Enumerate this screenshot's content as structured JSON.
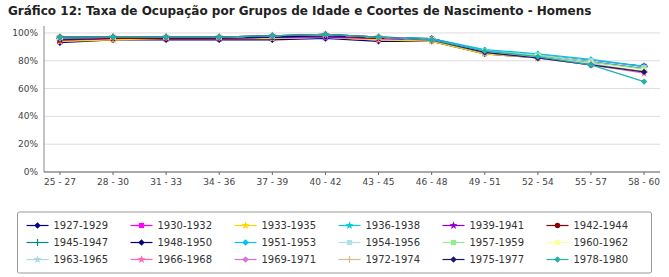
{
  "chart_data": {
    "type": "line",
    "title": "Gráfico 12: Taxa de Ocupação por Grupos de Idade e Coortes de Nascimento - Homens",
    "categories": [
      "25 - 27",
      "28 - 30",
      "31 - 33",
      "34 - 36",
      "37 - 39",
      "40 - 42",
      "43 - 45",
      "46 - 48",
      "49 - 51",
      "52 - 54",
      "55 - 57",
      "58 - 60"
    ],
    "ylim": [
      0,
      1.05
    ],
    "yticks": [
      {
        "value": 0,
        "label": "0%"
      },
      {
        "value": 0.2,
        "label": "20%"
      },
      {
        "value": 0.4,
        "label": "40%"
      },
      {
        "value": 0.6,
        "label": "60%"
      },
      {
        "value": 0.8,
        "label": "80%"
      },
      {
        "value": 1,
        "label": "100%"
      }
    ],
    "grid": true,
    "legend": "bottom",
    "series": [
      {
        "name": "1927-1929",
        "color": "#00008B",
        "marker": "diamond",
        "values": [
          0.93,
          0.95,
          0.95,
          0.95,
          0.95,
          0.96,
          0.94,
          0.94,
          0.85,
          0.82,
          0.79,
          0.75
        ]
      },
      {
        "name": "1930-1932",
        "color": "#FF00FF",
        "marker": "square",
        "values": [
          0.94,
          0.96,
          0.96,
          0.96,
          0.96,
          0.97,
          0.95,
          0.95,
          0.86,
          0.83,
          0.8,
          0.76
        ]
      },
      {
        "name": "1933-1935",
        "color": "#FFD700",
        "marker": "star",
        "values": [
          0.94,
          0.95,
          0.96,
          0.96,
          0.96,
          0.97,
          0.95,
          0.94,
          0.85,
          0.82,
          0.79,
          0.75
        ]
      },
      {
        "name": "1936-1938",
        "color": "#00CED1",
        "marker": "star",
        "values": [
          0.96,
          0.97,
          0.97,
          0.97,
          0.97,
          0.98,
          0.97,
          0.95,
          0.87,
          0.84,
          0.8,
          0.76
        ]
      },
      {
        "name": "1939-1941",
        "color": "#9400D3",
        "marker": "star",
        "values": [
          0.95,
          0.96,
          0.96,
          0.96,
          0.97,
          0.97,
          0.96,
          0.95,
          0.86,
          0.83,
          0.79,
          0.75
        ]
      },
      {
        "name": "1942-1944",
        "color": "#8B0000",
        "marker": "circle",
        "values": [
          0.95,
          0.96,
          0.96,
          0.96,
          0.97,
          0.98,
          0.96,
          0.96,
          0.87,
          0.84,
          0.8,
          0.76
        ]
      },
      {
        "name": "1945-1947",
        "color": "#008B8B",
        "marker": "plus",
        "values": [
          0.96,
          0.97,
          0.97,
          0.97,
          0.97,
          0.98,
          0.97,
          0.95,
          0.87,
          0.84,
          0.8,
          0.76
        ]
      },
      {
        "name": "1948-1950",
        "color": "#000080",
        "marker": "diamond",
        "values": [
          0.96,
          0.97,
          0.97,
          0.97,
          0.97,
          0.98,
          0.97,
          0.96,
          0.87,
          0.84,
          0.8,
          0.75
        ]
      },
      {
        "name": "1951-1953",
        "color": "#00BFFF",
        "marker": "diamond",
        "values": [
          0.96,
          0.97,
          0.97,
          0.97,
          0.98,
          0.99,
          0.97,
          0.96,
          0.88,
          0.85,
          0.81,
          0.76
        ]
      },
      {
        "name": "1954-1956",
        "color": "#B0E0E6",
        "marker": "square",
        "values": [
          0.97,
          0.97,
          0.97,
          0.97,
          0.98,
          0.99,
          0.97,
          0.95,
          0.87,
          0.84,
          0.8,
          0.75
        ]
      },
      {
        "name": "1957-1959",
        "color": "#90EE90",
        "marker": "square",
        "values": [
          0.97,
          0.97,
          0.97,
          0.97,
          0.98,
          0.99,
          0.97,
          0.95,
          0.87,
          0.84,
          0.79,
          0.74
        ]
      },
      {
        "name": "1960-1962",
        "color": "#FFFF99",
        "marker": "square",
        "values": [
          0.97,
          0.97,
          0.97,
          0.97,
          0.98,
          0.99,
          0.97,
          0.95,
          0.86,
          0.83,
          0.78,
          0.73
        ]
      },
      {
        "name": "1963-1965",
        "color": "#ADD8E6",
        "marker": "star",
        "values": [
          0.97,
          0.97,
          0.97,
          0.97,
          0.98,
          0.99,
          0.97,
          0.95,
          0.86,
          0.83,
          0.78,
          0.72
        ]
      },
      {
        "name": "1966-1968",
        "color": "#FF69B4",
        "marker": "star",
        "values": [
          0.97,
          0.97,
          0.97,
          0.97,
          0.98,
          0.99,
          0.97,
          0.95,
          0.86,
          0.82,
          0.77,
          0.71
        ]
      },
      {
        "name": "1969-1971",
        "color": "#DA70D6",
        "marker": "diamond",
        "values": [
          0.97,
          0.97,
          0.97,
          0.97,
          0.98,
          0.99,
          0.97,
          0.95,
          0.86,
          0.82,
          0.77,
          0.72
        ]
      },
      {
        "name": "1972-1974",
        "color": "#DEB887",
        "marker": "plus",
        "values": [
          0.97,
          0.97,
          0.97,
          0.97,
          0.98,
          0.99,
          0.97,
          0.95,
          0.86,
          0.82,
          0.77,
          0.72
        ]
      },
      {
        "name": "1975-1977",
        "color": "#191970",
        "marker": "diamond",
        "values": [
          0.97,
          0.97,
          0.97,
          0.97,
          0.98,
          0.99,
          0.97,
          0.95,
          0.86,
          0.82,
          0.77,
          0.72
        ]
      },
      {
        "name": "1978-1980",
        "color": "#20B2AA",
        "marker": "diamond",
        "values": [
          0.97,
          0.97,
          0.97,
          0.97,
          0.98,
          0.99,
          0.97,
          0.95,
          0.87,
          0.83,
          0.77,
          0.65
        ]
      }
    ]
  }
}
